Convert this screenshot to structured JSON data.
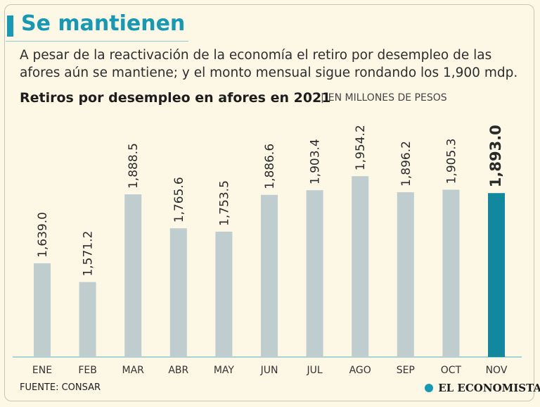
{
  "headline": "Se mantienen",
  "subtitle": "A pesar de la reactivación de la economía el retiro por desempleo de las afores aún se mantiene; y el monto mensual sigue rondando los 1,900 mdp.",
  "source": "FUENTE: CONSAR",
  "brand": "EL ECONOMISTA",
  "colors": {
    "accent": "#1599b4",
    "bar": "#bfcdcf",
    "highlight": "#12889f",
    "background": "#fdf7e6"
  },
  "chart_data": {
    "type": "bar",
    "title": "Retiros por desempleo en afores en 2021",
    "unit_label": "EN MILLONES DE PESOS",
    "unit_separator": "|",
    "categories": [
      "ENE",
      "FEB",
      "MAR",
      "ABR",
      "MAY",
      "JUN",
      "JUL",
      "AGO",
      "SEP",
      "OCT",
      "NOV"
    ],
    "values": [
      1639.0,
      1571.2,
      1888.5,
      1765.6,
      1753.5,
      1886.6,
      1903.4,
      1954.2,
      1896.2,
      1905.3,
      1893.0
    ],
    "labels": [
      "1,639.0",
      "1,571.2",
      "1,888.5",
      "1,765.6",
      "1,753.5",
      "1,886.6",
      "1,903.4",
      "1,954.2",
      "1,896.2",
      "1,905.3",
      "1,893.0"
    ],
    "highlight_index": 10,
    "ylim": [
      1300,
      1970
    ],
    "xlabel": "",
    "ylabel": "",
    "grid": false
  }
}
